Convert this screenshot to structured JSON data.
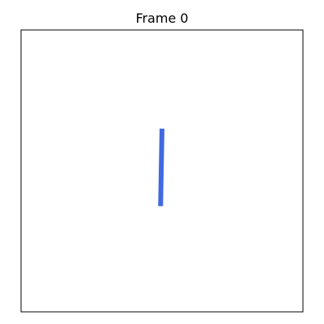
{
  "chart_data": {
    "type": "line",
    "title": "Frame 0",
    "xlabel": "",
    "ylabel": "",
    "xlim": [
      -1,
      1
    ],
    "ylim": [
      -1,
      1
    ],
    "axis_ticks": false,
    "grid": false,
    "series": [
      {
        "color": "#4169e1",
        "x": [
          -0.01,
          0.0
        ],
        "y": [
          -0.25,
          0.3
        ]
      }
    ]
  }
}
